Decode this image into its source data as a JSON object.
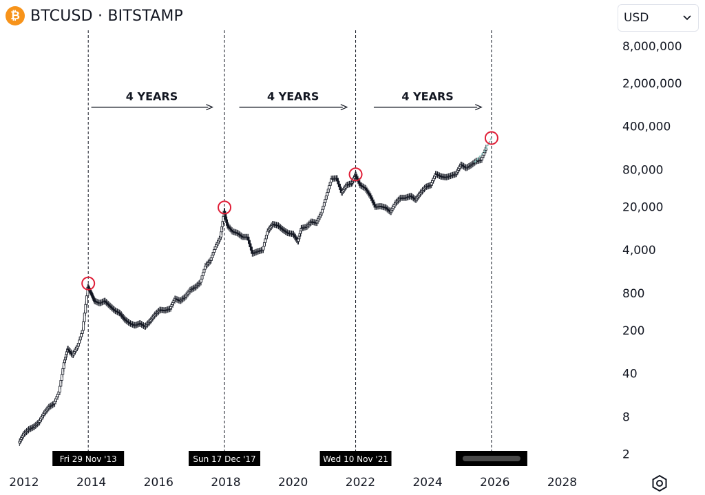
{
  "header": {
    "logo_glyph": "₿",
    "title": "BTCUSD · BITSTAMP"
  },
  "currency_selector": {
    "value": "USD"
  },
  "icons": {
    "logo": "bitcoin-logo-icon",
    "currency_dropdown": "chevron-down-icon",
    "settings": "settings-icon"
  },
  "colors": {
    "candle": "#131722",
    "forecast": "#8ac6c0",
    "marker": "#e01e37",
    "label_bg": "#000000"
  },
  "chart_data": {
    "type": "line",
    "title": "",
    "xlabel": "",
    "ylabel": "",
    "y_scale": "log",
    "xlim": [
      2011.9,
      2029.3
    ],
    "ylim": [
      1.6,
      13000000
    ],
    "x_ticks": [
      {
        "value": 2012,
        "label": "2012"
      },
      {
        "value": 2014,
        "label": "2014"
      },
      {
        "value": 2016,
        "label": "2016"
      },
      {
        "value": 2018,
        "label": "2018"
      },
      {
        "value": 2020,
        "label": "2020"
      },
      {
        "value": 2022,
        "label": "2022"
      },
      {
        "value": 2024,
        "label": "2024"
      },
      {
        "value": 2026,
        "label": "2026"
      },
      {
        "value": 2028,
        "label": "2028"
      }
    ],
    "y_ticks": [
      {
        "value": 8000000,
        "label": "8,000,000"
      },
      {
        "value": 2000000,
        "label": "2,000,000"
      },
      {
        "value": 400000,
        "label": "400,000"
      },
      {
        "value": 80000,
        "label": "80,000"
      },
      {
        "value": 20000,
        "label": "20,000"
      },
      {
        "value": 4000,
        "label": "4,000"
      },
      {
        "value": 800,
        "label": "800"
      },
      {
        "value": 200,
        "label": "200"
      },
      {
        "value": 40,
        "label": "40"
      },
      {
        "value": 8,
        "label": "8"
      },
      {
        "value": 2,
        "label": "2"
      }
    ],
    "series": [
      {
        "x": [
          2011.85,
          2012.0,
          2012.15,
          2012.3,
          2012.45,
          2012.6,
          2012.75,
          2012.9,
          2013.05,
          2013.2,
          2013.3,
          2013.45,
          2013.6,
          2013.75,
          2013.91,
          2014.0,
          2014.1,
          2014.25,
          2014.4,
          2014.55,
          2014.7,
          2014.85,
          2015.0,
          2015.15,
          2015.3,
          2015.45,
          2015.6,
          2015.75,
          2015.9,
          2016.05,
          2016.2,
          2016.35,
          2016.5,
          2016.65,
          2016.8,
          2016.95,
          2017.1,
          2017.25,
          2017.4,
          2017.55,
          2017.7,
          2017.85,
          2017.96,
          2018.05,
          2018.2,
          2018.35,
          2018.5,
          2018.65,
          2018.8,
          2018.95,
          2019.1,
          2019.25,
          2019.4,
          2019.55,
          2019.7,
          2019.85,
          2020.0,
          2020.15,
          2020.25,
          2020.4,
          2020.55,
          2020.7,
          2020.85,
          2021.0,
          2021.15,
          2021.3,
          2021.45,
          2021.6,
          2021.75,
          2021.86,
          2022.0,
          2022.15,
          2022.3,
          2022.45,
          2022.6,
          2022.75,
          2022.9,
          2023.05,
          2023.2,
          2023.35,
          2023.5,
          2023.65,
          2023.8,
          2023.95,
          2024.1,
          2024.25,
          2024.4,
          2024.55,
          2024.7,
          2024.85,
          2025.0,
          2025.15,
          2025.3,
          2025.45,
          2025.6,
          2025.75
        ],
        "values": [
          3,
          4.2,
          5,
          5.5,
          6.5,
          9,
          11.5,
          13,
          20,
          60,
          100,
          80,
          110,
          200,
          1000,
          800,
          600,
          550,
          600,
          500,
          420,
          380,
          300,
          260,
          240,
          260,
          230,
          280,
          360,
          430,
          420,
          450,
          650,
          600,
          700,
          900,
          1000,
          1200,
          2200,
          2700,
          4500,
          6500,
          17000,
          10000,
          8000,
          7500,
          6500,
          6500,
          3500,
          3800,
          4000,
          8000,
          10500,
          10000,
          8500,
          7500,
          7300,
          5500,
          9000,
          9500,
          11500,
          11000,
          16000,
          30000,
          57000,
          58000,
          34000,
          45000,
          48000,
          66000,
          45000,
          40000,
          30000,
          20000,
          20500,
          19500,
          16500,
          23000,
          28000,
          28000,
          30000,
          26000,
          34000,
          42000,
          45000,
          68000,
          62000,
          60000,
          64000,
          68000,
          96000,
          85000,
          95000,
          110000,
          115000,
          180000
        ]
      }
    ],
    "annotations": [
      {
        "label": "4 YEARS",
        "x_from": 2014.0,
        "x_to": 2017.6,
        "y": 820000
      },
      {
        "label": "4 YEARS",
        "x_from": 2018.4,
        "x_to": 2021.6,
        "y": 820000
      },
      {
        "label": "4 YEARS",
        "x_from": 2022.4,
        "x_to": 2025.6,
        "y": 820000
      }
    ],
    "cycle_markers": [
      {
        "x": 2013.91,
        "y": 1150,
        "label": "Fri 29 Nov '13"
      },
      {
        "x": 2017.96,
        "y": 19500,
        "label": "Sun 17 Dec '17"
      },
      {
        "x": 2021.86,
        "y": 67000,
        "label": "Wed 10 Nov '21"
      },
      {
        "x": 2025.9,
        "y": 260000,
        "label": ""
      }
    ],
    "forecast_segment": {
      "x": [
        2025.4,
        2025.55,
        2025.7,
        2025.9
      ],
      "values": [
        105000,
        130000,
        160000,
        260000
      ]
    },
    "grid": false
  }
}
